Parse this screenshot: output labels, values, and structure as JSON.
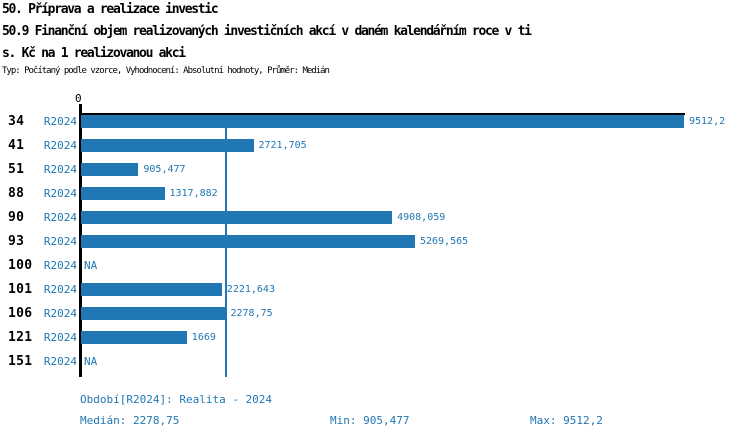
{
  "header": {
    "title_line1": "50. Příprava a realizace investic",
    "title_line2": "50.9 Finanční objem realizovaných investičních akcí v daném kalendářním roce v ti",
    "title_line3": "s. Kč na 1 realizovanou akci",
    "meta_line": "Typ: Počítaný podle vzorce, Vyhodnocení: Absolutní hodnoty, Průměr: Medián"
  },
  "chart_data": {
    "type": "bar",
    "orientation": "horizontal",
    "title": "50.9 Finanční objem realizovaných investičních akcí v daném kalendářním roce v tis. Kč na 1 realizovanou akci",
    "categories": [
      "34",
      "41",
      "51",
      "88",
      "90",
      "93",
      "100",
      "101",
      "106",
      "121",
      "151"
    ],
    "series": [
      {
        "name": "R2024",
        "values": [
          9512.2,
          2721.705,
          905.477,
          1317.882,
          4908.059,
          5269.565,
          null,
          2221.643,
          2278.75,
          1669,
          null
        ]
      }
    ],
    "value_labels": [
      "9512,2",
      "2721,705",
      "905,477",
      "1317,882",
      "4908,059",
      "5269,565",
      "NA",
      "2221,643",
      "2278,75",
      "1669",
      "NA"
    ],
    "na_label": "NA",
    "xlim": [
      0,
      9512.2
    ],
    "zero_tick_label": "0",
    "median_value": 2278.75,
    "grid": "median-line-only",
    "legend_position": "none",
    "bar_color": "#2077b4",
    "axis_color": "#000000"
  },
  "footer": {
    "period": "Období[R2024]: Realita - 2024",
    "median": "Medián: 2278,75",
    "min": "Min: 905,477",
    "max": "Max: 9512,2"
  },
  "colors": {
    "accent": "#2077b4",
    "text": "#000000",
    "background": "#ffffff"
  }
}
